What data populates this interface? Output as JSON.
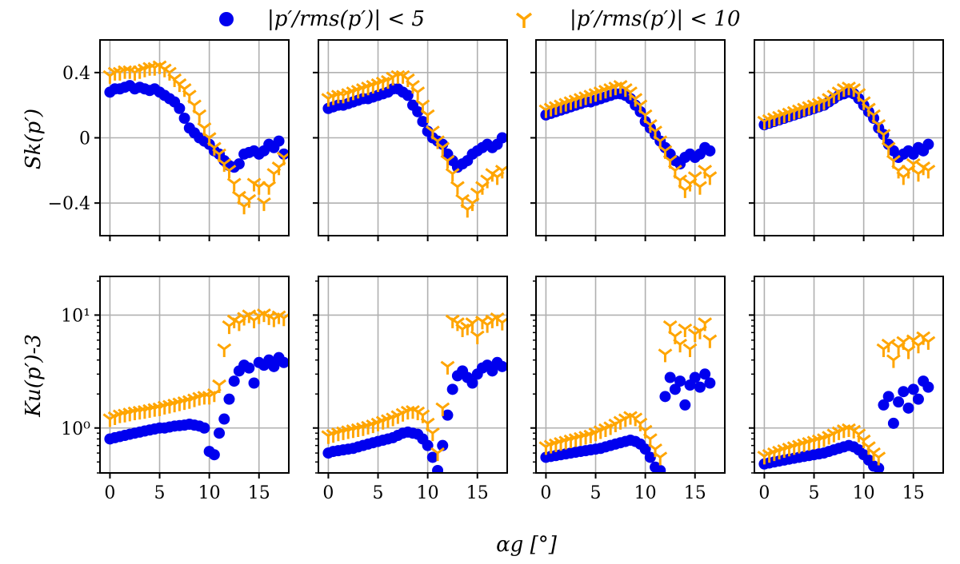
{
  "legend": {
    "blue_label": "|p′/rms(p′)| < 5",
    "orange_label": "|p′/rms(p′)| < 10"
  },
  "colors": {
    "blue": "#0000ee",
    "orange": "#ffa500",
    "grid": "#b0b0b0",
    "axis": "#000000"
  },
  "labels": {
    "xlabel": "αg [°]",
    "ylabel_top": "Sk(p′)",
    "ylabel_bottom": "Ku(p′)-3"
  },
  "chart_data": {
    "type": "scatter",
    "xticks": [
      0,
      5,
      10,
      15
    ],
    "xlim": [
      -1,
      18
    ],
    "sk": {
      "ylim": [
        -0.6,
        0.6
      ],
      "yticks": [
        0.4,
        0,
        -0.4
      ],
      "ytick_labels": [
        "0.4",
        "0",
        "−0.4"
      ],
      "panels": [
        {
          "x": [
            0,
            0.5,
            1,
            1.5,
            2,
            2.5,
            3,
            3.5,
            4,
            4.5,
            5,
            5.5,
            6,
            6.5,
            7,
            7.5,
            8,
            8.5,
            9,
            9.5,
            10,
            10.5,
            11,
            11.5,
            12,
            12.5,
            13,
            13.5,
            14,
            14.5,
            15,
            15.5,
            16,
            16.5,
            17,
            17.5
          ],
          "blue": [
            0.28,
            0.3,
            0.3,
            0.31,
            0.32,
            0.3,
            0.31,
            0.3,
            0.29,
            0.3,
            0.28,
            0.26,
            0.24,
            0.22,
            0.18,
            0.12,
            0.06,
            0.03,
            0.0,
            -0.02,
            -0.04,
            -0.08,
            -0.1,
            -0.14,
            -0.17,
            -0.18,
            -0.16,
            -0.1,
            -0.09,
            -0.08,
            -0.1,
            -0.08,
            -0.04,
            -0.06,
            -0.02,
            -0.1
          ],
          "orange": [
            0.38,
            0.4,
            0.4,
            0.41,
            0.41,
            0.4,
            0.41,
            0.42,
            0.43,
            0.43,
            0.44,
            0.42,
            0.4,
            0.36,
            0.33,
            0.3,
            0.26,
            0.2,
            0.14,
            0.06,
            0.0,
            -0.06,
            -0.1,
            -0.16,
            -0.2,
            -0.28,
            -0.36,
            -0.42,
            -0.38,
            -0.28,
            -0.3,
            -0.4,
            -0.3,
            -0.22,
            -0.18,
            -0.12
          ]
        },
        {
          "x": [
            0,
            0.5,
            1,
            1.5,
            2,
            2.5,
            3,
            3.5,
            4,
            4.5,
            5,
            5.5,
            6,
            6.5,
            7,
            7.5,
            8,
            8.5,
            9,
            9.5,
            10,
            10.5,
            11,
            11.5,
            12,
            12.5,
            13,
            13.5,
            14,
            14.5,
            15,
            15.5,
            16,
            16.5,
            17,
            17.5
          ],
          "blue": [
            0.18,
            0.19,
            0.2,
            0.2,
            0.21,
            0.22,
            0.23,
            0.24,
            0.24,
            0.25,
            0.26,
            0.27,
            0.28,
            0.3,
            0.3,
            0.28,
            0.26,
            0.2,
            0.16,
            0.1,
            0.04,
            0.0,
            -0.02,
            -0.04,
            -0.1,
            -0.14,
            -0.18,
            -0.16,
            -0.14,
            -0.1,
            -0.08,
            -0.06,
            -0.04,
            -0.06,
            -0.04,
            0.0
          ],
          "orange": [
            0.24,
            0.25,
            0.26,
            0.26,
            0.27,
            0.28,
            0.29,
            0.3,
            0.31,
            0.32,
            0.33,
            0.34,
            0.35,
            0.37,
            0.38,
            0.38,
            0.36,
            0.32,
            0.28,
            0.2,
            0.14,
            0.04,
            -0.02,
            -0.06,
            -0.14,
            -0.22,
            -0.3,
            -0.38,
            -0.44,
            -0.4,
            -0.34,
            -0.3,
            -0.26,
            -0.22,
            -0.24,
            -0.2
          ]
        },
        {
          "x": [
            0,
            0.5,
            1,
            1.5,
            2,
            2.5,
            3,
            3.5,
            4,
            4.5,
            5,
            5.5,
            6,
            6.5,
            7,
            7.5,
            8,
            8.5,
            9,
            9.5,
            10,
            10.5,
            11,
            11.5,
            12,
            12.5,
            13,
            13.5,
            14,
            14.5,
            15,
            15.5,
            16,
            16.5
          ],
          "blue": [
            0.14,
            0.15,
            0.16,
            0.17,
            0.18,
            0.19,
            0.2,
            0.21,
            0.22,
            0.22,
            0.23,
            0.24,
            0.25,
            0.26,
            0.27,
            0.27,
            0.26,
            0.24,
            0.2,
            0.16,
            0.1,
            0.06,
            0.02,
            -0.02,
            -0.06,
            -0.1,
            -0.14,
            -0.16,
            -0.12,
            -0.1,
            -0.12,
            -0.1,
            -0.06,
            -0.08
          ],
          "orange": [
            0.17,
            0.18,
            0.19,
            0.2,
            0.21,
            0.22,
            0.23,
            0.24,
            0.25,
            0.26,
            0.27,
            0.28,
            0.29,
            0.3,
            0.31,
            0.32,
            0.3,
            0.28,
            0.24,
            0.2,
            0.14,
            0.08,
            0.04,
            -0.02,
            -0.08,
            -0.14,
            -0.2,
            -0.26,
            -0.32,
            -0.28,
            -0.24,
            -0.3,
            -0.2,
            -0.24
          ]
        },
        {
          "x": [
            0,
            0.5,
            1,
            1.5,
            2,
            2.5,
            3,
            3.5,
            4,
            4.5,
            5,
            5.5,
            6,
            6.5,
            7,
            7.5,
            8,
            8.5,
            9,
            9.5,
            10,
            10.5,
            11,
            11.5,
            12,
            12.5,
            13,
            13.5,
            14,
            14.5,
            15,
            15.5,
            16,
            16.5
          ],
          "blue": [
            0.08,
            0.09,
            0.1,
            0.11,
            0.12,
            0.13,
            0.14,
            0.15,
            0.16,
            0.17,
            0.18,
            0.19,
            0.2,
            0.22,
            0.24,
            0.26,
            0.27,
            0.28,
            0.27,
            0.24,
            0.2,
            0.16,
            0.12,
            0.06,
            0.02,
            -0.04,
            -0.08,
            -0.12,
            -0.1,
            -0.08,
            -0.1,
            -0.06,
            -0.08,
            -0.04
          ],
          "orange": [
            0.1,
            0.11,
            0.12,
            0.13,
            0.14,
            0.15,
            0.16,
            0.17,
            0.18,
            0.19,
            0.2,
            0.21,
            0.22,
            0.24,
            0.26,
            0.28,
            0.3,
            0.31,
            0.3,
            0.27,
            0.22,
            0.18,
            0.14,
            0.08,
            0.02,
            -0.06,
            -0.14,
            -0.2,
            -0.24,
            -0.2,
            -0.16,
            -0.22,
            -0.18,
            -0.2
          ]
        }
      ]
    },
    "ku": {
      "yscale": "log",
      "ylim": [
        0.4,
        22
      ],
      "yticks": [
        1,
        10
      ],
      "ytick_labels": [
        "10⁰",
        "10¹"
      ],
      "minor_ticks": [
        0.4,
        0.5,
        0.6,
        0.7,
        0.8,
        0.9,
        2,
        3,
        4,
        5,
        6,
        7,
        8,
        9,
        20
      ],
      "panels": [
        {
          "x": [
            0,
            0.5,
            1,
            1.5,
            2,
            2.5,
            3,
            3.5,
            4,
            4.5,
            5,
            5.5,
            6,
            6.5,
            7,
            7.5,
            8,
            8.5,
            9,
            9.5,
            10,
            10.5,
            11,
            11.5,
            12,
            12.5,
            13,
            13.5,
            14,
            14.5,
            15,
            15.5,
            16,
            16.5,
            17,
            17.5
          ],
          "blue": [
            0.8,
            0.82,
            0.84,
            0.86,
            0.88,
            0.9,
            0.92,
            0.94,
            0.96,
            0.98,
            1.0,
            1.0,
            1.02,
            1.04,
            1.05,
            1.06,
            1.08,
            1.06,
            1.04,
            1.0,
            0.62,
            0.58,
            0.9,
            1.2,
            1.8,
            2.6,
            3.2,
            3.6,
            3.4,
            2.5,
            3.8,
            3.6,
            4.0,
            3.5,
            4.2,
            3.8
          ],
          "orange": [
            1.2,
            1.25,
            1.3,
            1.32,
            1.35,
            1.38,
            1.4,
            1.42,
            1.45,
            1.48,
            1.5,
            1.55,
            1.58,
            1.62,
            1.66,
            1.7,
            1.74,
            1.8,
            1.86,
            1.9,
            1.9,
            2.0,
            2.4,
            5.0,
            8.0,
            9.0,
            8.5,
            9.5,
            10.0,
            9.0,
            9.8,
            10.2,
            9.6,
            9.2,
            9.8,
            9.4
          ]
        },
        {
          "x": [
            0,
            0.5,
            1,
            1.5,
            2,
            2.5,
            3,
            3.5,
            4,
            4.5,
            5,
            5.5,
            6,
            6.5,
            7,
            7.5,
            8,
            8.5,
            9,
            9.5,
            10,
            10.5,
            11,
            11.5,
            12,
            12.5,
            13,
            13.5,
            14,
            14.5,
            15,
            15.5,
            16,
            16.5,
            17,
            17.5
          ],
          "blue": [
            0.6,
            0.62,
            0.63,
            0.64,
            0.65,
            0.66,
            0.68,
            0.7,
            0.72,
            0.74,
            0.76,
            0.78,
            0.8,
            0.82,
            0.86,
            0.9,
            0.92,
            0.9,
            0.88,
            0.8,
            0.7,
            0.55,
            0.42,
            0.7,
            1.3,
            2.2,
            2.9,
            3.2,
            2.8,
            2.5,
            3.0,
            3.4,
            3.6,
            3.2,
            3.8,
            3.5
          ],
          "orange": [
            0.85,
            0.87,
            0.9,
            0.92,
            0.94,
            0.96,
            0.98,
            1.0,
            1.03,
            1.06,
            1.1,
            1.14,
            1.18,
            1.22,
            1.28,
            1.34,
            1.4,
            1.42,
            1.38,
            1.3,
            1.1,
            0.9,
            0.6,
            1.5,
            3.5,
            9.0,
            8.5,
            7.5,
            7.8,
            8.5,
            6.5,
            8.8,
            8.2,
            9.0,
            9.4,
            8.6
          ]
        },
        {
          "x": [
            0,
            0.5,
            1,
            1.5,
            2,
            2.5,
            3,
            3.5,
            4,
            4.5,
            5,
            5.5,
            6,
            6.5,
            7,
            7.5,
            8,
            8.5,
            9,
            9.5,
            10,
            10.5,
            11,
            11.5,
            12,
            12.5,
            13,
            13.5,
            14,
            14.5,
            15,
            15.5,
            16,
            16.5
          ],
          "blue": [
            0.55,
            0.56,
            0.57,
            0.58,
            0.59,
            0.6,
            0.61,
            0.62,
            0.63,
            0.64,
            0.65,
            0.66,
            0.68,
            0.7,
            0.72,
            0.74,
            0.76,
            0.78,
            0.76,
            0.72,
            0.65,
            0.55,
            0.45,
            0.42,
            1.9,
            2.8,
            2.2,
            2.6,
            1.6,
            2.4,
            2.8,
            2.3,
            3.0,
            2.5
          ],
          "orange": [
            0.68,
            0.7,
            0.72,
            0.74,
            0.76,
            0.78,
            0.8,
            0.82,
            0.84,
            0.86,
            0.9,
            0.94,
            0.98,
            1.02,
            1.08,
            1.14,
            1.2,
            1.26,
            1.22,
            1.1,
            0.95,
            0.8,
            0.65,
            0.55,
            4.5,
            8.0,
            6.5,
            5.5,
            7.5,
            5.0,
            6.8,
            7.2,
            8.5,
            6.0
          ]
        },
        {
          "x": [
            0,
            0.5,
            1,
            1.5,
            2,
            2.5,
            3,
            3.5,
            4,
            4.5,
            5,
            5.5,
            6,
            6.5,
            7,
            7.5,
            8,
            8.5,
            9,
            9.5,
            10,
            10.5,
            11,
            11.5,
            12,
            12.5,
            13,
            13.5,
            14,
            14.5,
            15,
            15.5,
            16,
            16.5
          ],
          "blue": [
            0.48,
            0.49,
            0.5,
            0.51,
            0.52,
            0.53,
            0.54,
            0.55,
            0.56,
            0.57,
            0.58,
            0.59,
            0.6,
            0.62,
            0.64,
            0.66,
            0.68,
            0.7,
            0.68,
            0.64,
            0.58,
            0.52,
            0.46,
            0.44,
            1.6,
            1.9,
            1.1,
            1.7,
            2.1,
            1.5,
            2.2,
            1.8,
            2.6,
            2.3
          ],
          "orange": [
            0.56,
            0.58,
            0.6,
            0.62,
            0.64,
            0.66,
            0.68,
            0.7,
            0.72,
            0.74,
            0.76,
            0.78,
            0.8,
            0.84,
            0.88,
            0.92,
            0.96,
            0.98,
            0.95,
            0.88,
            0.78,
            0.68,
            0.6,
            0.55,
            5.0,
            5.5,
            4.0,
            5.2,
            5.8,
            4.8,
            6.0,
            5.4,
            6.4,
            5.8
          ]
        }
      ]
    }
  }
}
